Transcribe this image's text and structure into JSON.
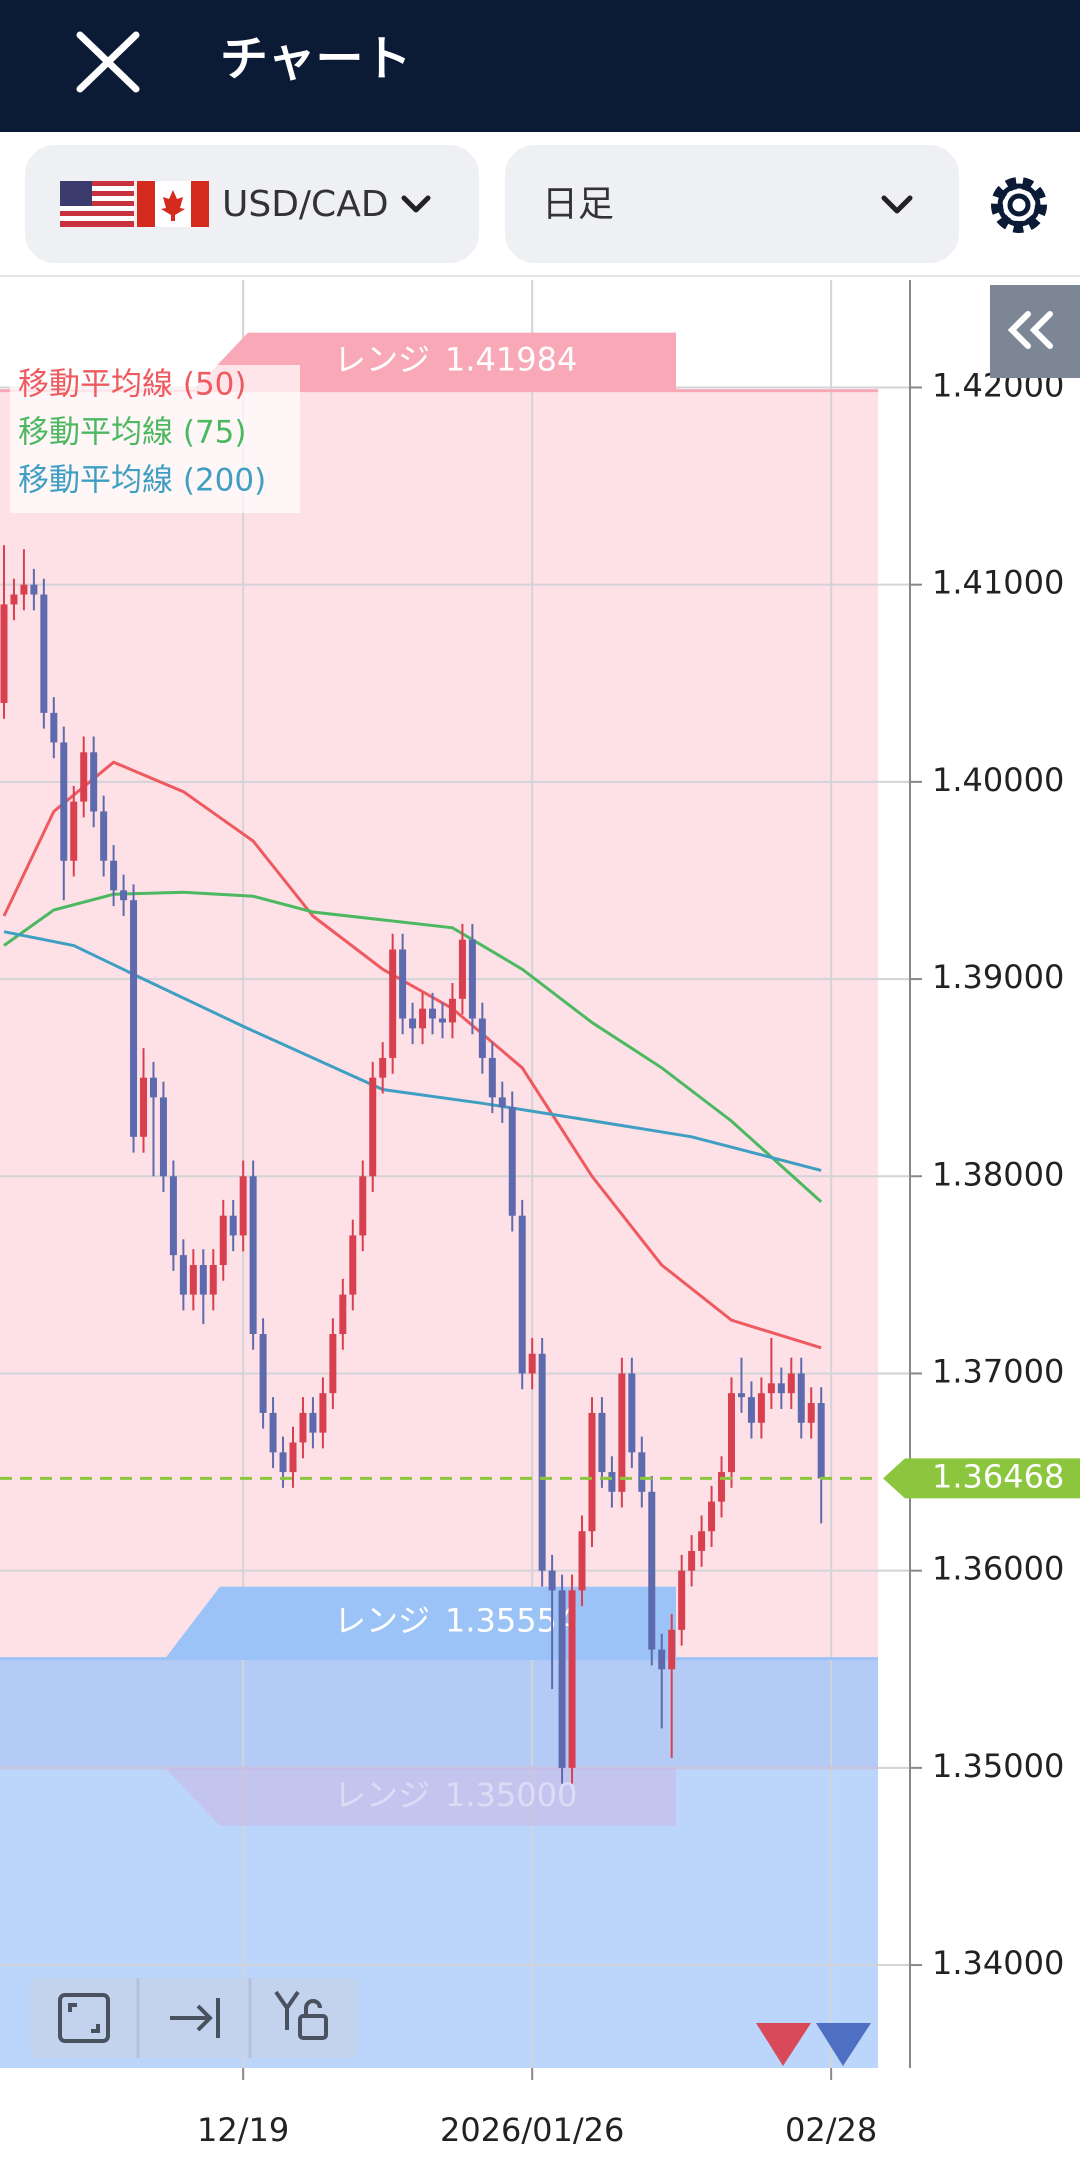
{
  "header": {
    "title": "チャート"
  },
  "selectors": {
    "pair": "USD/CAD",
    "timeframe": "日足"
  },
  "chart_data": {
    "type": "candlestick",
    "up_color": "#d9404f",
    "down_color": "#5e6aae",
    "ylim": [
      1.33478,
      1.42545
    ],
    "yticks": [
      {
        "value": 1.34,
        "label": "1.34000"
      },
      {
        "value": 1.35,
        "label": "1.35000"
      },
      {
        "value": 1.36,
        "label": "1.36000"
      },
      {
        "value": 1.37,
        "label": "1.37000"
      },
      {
        "value": 1.38,
        "label": "1.38000"
      },
      {
        "value": 1.39,
        "label": "1.39000"
      },
      {
        "value": 1.4,
        "label": "1.40000"
      },
      {
        "value": 1.41,
        "label": "1.41000"
      },
      {
        "value": 1.42,
        "label": "1.42000"
      }
    ],
    "xlim": [
      -0.4,
      87.7
    ],
    "xticks": [
      {
        "value": 24,
        "label": "12/19"
      },
      {
        "value": 53,
        "label": "2026/01/26"
      },
      {
        "value": 83,
        "label": "02/28"
      }
    ],
    "grid": true,
    "current_price": 1.36468,
    "current_color": "#8cc63f",
    "ranges": [
      {
        "label": "レンジ",
        "value": 1.41984,
        "color": "#f9a8b8"
      },
      {
        "label": "レンジ",
        "value": 1.35554,
        "color": "#9cc3f7"
      },
      {
        "label": "レンジ",
        "value": {
          "value": 1.35,
          "label": "1.35000"
        },
        "color": "#c8b8e4"
      }
    ],
    "ohlc": [
      [
        1.404,
        1.412,
        1.4032,
        1.409
      ],
      [
        1.409,
        1.4103,
        1.4082,
        1.4095
      ],
      [
        1.4095,
        1.4118,
        1.4087,
        1.41
      ],
      [
        1.41,
        1.4108,
        1.4087,
        1.4095
      ],
      [
        1.4095,
        1.4103,
        1.4027,
        1.4035
      ],
      [
        1.4035,
        1.4043,
        1.4012,
        1.402
      ],
      [
        1.402,
        1.4028,
        1.394,
        1.396
      ],
      [
        1.396,
        1.3998,
        1.3952,
        1.399
      ],
      [
        1.399,
        1.4023,
        1.3982,
        1.4015
      ],
      [
        1.4015,
        1.4023,
        1.3977,
        1.3985
      ],
      [
        1.3985,
        1.3993,
        1.3952,
        1.396
      ],
      [
        1.396,
        1.3968,
        1.3937,
        1.3945
      ],
      [
        1.3945,
        1.3953,
        1.3932,
        1.394
      ],
      [
        1.394,
        1.3948,
        1.3812,
        1.382
      ],
      [
        1.382,
        1.3865,
        1.3812,
        1.385
      ],
      [
        1.385,
        1.3858,
        1.38,
        1.384
      ],
      [
        1.384,
        1.3848,
        1.3792,
        1.38
      ],
      [
        1.38,
        1.3808,
        1.3752,
        1.376
      ],
      [
        1.376,
        1.3768,
        1.3732,
        1.374
      ],
      [
        1.374,
        1.3763,
        1.3732,
        1.3755
      ],
      [
        1.3755,
        1.3763,
        1.3725,
        1.374
      ],
      [
        1.374,
        1.3763,
        1.3732,
        1.3755
      ],
      [
        1.3755,
        1.3788,
        1.3747,
        1.378
      ],
      [
        1.378,
        1.3788,
        1.3762,
        1.377
      ],
      [
        1.377,
        1.3808,
        1.3762,
        1.38
      ],
      [
        1.38,
        1.3808,
        1.3712,
        1.372
      ],
      [
        1.372,
        1.3728,
        1.3672,
        1.368
      ],
      [
        1.368,
        1.3688,
        1.3652,
        1.366
      ],
      [
        1.366,
        1.3668,
        1.3642,
        1.365
      ],
      [
        1.365,
        1.3673,
        1.3642,
        1.3665
      ],
      [
        1.3665,
        1.3688,
        1.3657,
        1.368
      ],
      [
        1.368,
        1.3688,
        1.3662,
        1.367
      ],
      [
        1.367,
        1.3698,
        1.3662,
        1.369
      ],
      [
        1.369,
        1.3728,
        1.3682,
        1.372
      ],
      [
        1.372,
        1.3748,
        1.3712,
        1.374
      ],
      [
        1.374,
        1.3778,
        1.3732,
        1.377
      ],
      [
        1.377,
        1.3808,
        1.3762,
        1.38
      ],
      [
        1.38,
        1.3858,
        1.3792,
        1.385
      ],
      [
        1.385,
        1.3868,
        1.3842,
        1.386
      ],
      [
        1.386,
        1.3923,
        1.3852,
        1.3915
      ],
      [
        1.3915,
        1.3923,
        1.3872,
        1.388
      ],
      [
        1.388,
        1.3888,
        1.3867,
        1.3875
      ],
      [
        1.3875,
        1.3893,
        1.3867,
        1.3885
      ],
      [
        1.3885,
        1.3893,
        1.3872,
        1.388
      ],
      [
        1.388,
        1.3888,
        1.387,
        1.3878
      ],
      [
        1.3878,
        1.3898,
        1.387,
        1.389
      ],
      [
        1.389,
        1.3928,
        1.3882,
        1.392
      ],
      [
        1.392,
        1.3928,
        1.3872,
        1.388
      ],
      [
        1.388,
        1.3888,
        1.3852,
        1.386
      ],
      [
        1.386,
        1.3868,
        1.3832,
        1.384
      ],
      [
        1.384,
        1.3848,
        1.3827,
        1.3835
      ],
      [
        1.3835,
        1.3843,
        1.3772,
        1.378
      ],
      [
        1.378,
        1.3788,
        1.3692,
        1.37
      ],
      [
        1.37,
        1.3718,
        1.3692,
        1.371
      ],
      [
        1.371,
        1.3718,
        1.3592,
        1.36
      ],
      [
        1.36,
        1.3608,
        1.354,
        1.359
      ],
      [
        1.359,
        1.3598,
        1.3492,
        1.35
      ],
      [
        1.35,
        1.3598,
        1.3492,
        1.359
      ],
      [
        1.359,
        1.3628,
        1.3582,
        1.362
      ],
      [
        1.362,
        1.3688,
        1.3612,
        1.368
      ],
      [
        1.368,
        1.3688,
        1.3642,
        1.365
      ],
      [
        1.365,
        1.3658,
        1.3632,
        1.364
      ],
      [
        1.364,
        1.3708,
        1.3632,
        1.37
      ],
      [
        1.37,
        1.3708,
        1.3652,
        1.366
      ],
      [
        1.366,
        1.3668,
        1.3632,
        1.364
      ],
      [
        1.364,
        1.3648,
        1.3552,
        1.356
      ],
      [
        1.356,
        1.3568,
        1.352,
        1.355
      ],
      [
        1.355,
        1.3578,
        1.3505,
        1.357
      ],
      [
        1.357,
        1.3608,
        1.3562,
        1.36
      ],
      [
        1.36,
        1.3618,
        1.3592,
        1.361
      ],
      [
        1.361,
        1.3628,
        1.3602,
        1.362
      ],
      [
        1.362,
        1.3643,
        1.3612,
        1.3635
      ],
      [
        1.3635,
        1.3658,
        1.3627,
        1.365
      ],
      [
        1.365,
        1.3698,
        1.3642,
        1.369
      ],
      [
        1.369,
        1.3708,
        1.368,
        1.3688
      ],
      [
        1.3688,
        1.3696,
        1.3667,
        1.3675
      ],
      [
        1.3675,
        1.3698,
        1.3667,
        1.369
      ],
      [
        1.369,
        1.3718,
        1.3682,
        1.3695
      ],
      [
        1.3695,
        1.3703,
        1.3682,
        1.369
      ],
      [
        1.369,
        1.3708,
        1.3682,
        1.37
      ],
      [
        1.37,
        1.3708,
        1.3667,
        1.3675
      ],
      [
        1.3675,
        1.3693,
        1.3667,
        1.3685
      ],
      [
        1.3685,
        1.3693,
        1.3624,
        1.36468
      ]
    ],
    "series": [
      {
        "name": "移動平均線 (50)",
        "color": "#ee5a5f",
        "x": [
          0,
          5,
          11,
          18,
          25,
          31,
          38,
          45,
          52,
          59,
          66,
          73,
          82
        ],
        "values": [
          1.3932,
          1.3985,
          1.401,
          1.3995,
          1.397,
          1.3932,
          1.3905,
          1.3885,
          1.3855,
          1.38,
          1.3755,
          1.3727,
          1.3713
        ]
      },
      {
        "name": "移動平均線 (75)",
        "color": "#4cb860",
        "x": [
          0,
          5,
          11,
          18,
          25,
          31,
          38,
          45,
          52,
          59,
          66,
          73,
          82
        ],
        "values": [
          1.3917,
          1.3935,
          1.3943,
          1.3944,
          1.3942,
          1.3934,
          1.393,
          1.3926,
          1.3905,
          1.3878,
          1.3855,
          1.3828,
          1.3787
        ]
      },
      {
        "name": "移動平均線 (200)",
        "color": "#3f9fc2",
        "x": [
          0,
          7,
          14,
          24,
          38,
          48,
          58,
          69,
          82
        ],
        "values": [
          1.3924,
          1.3917,
          1.39,
          1.3876,
          1.3844,
          1.3837,
          1.3829,
          1.382,
          1.3803
        ]
      }
    ]
  }
}
